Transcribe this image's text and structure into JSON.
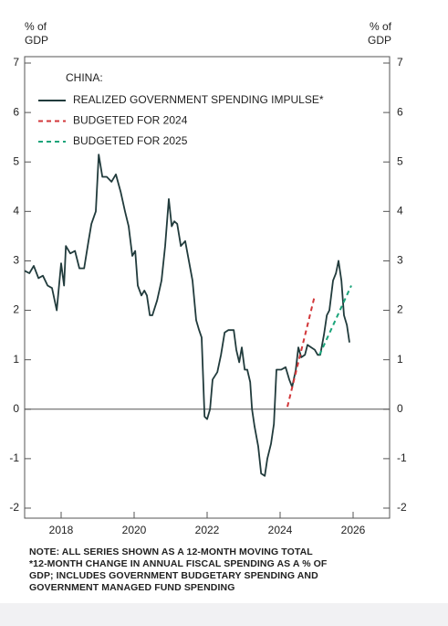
{
  "chart_data": {
    "type": "line",
    "y_label": "% of GDP",
    "legend_title": "CHINA:",
    "notes": [
      "NOTE: ALL SERIES SHOWN AS A 12-MONTH MOVING TOTAL",
      "*12-MONTH CHANGE IN ANNUAL FISCAL SPENDING AS A % OF",
      "GDP; INCLUDES GOVERNMENT BUDGETARY SPENDING AND",
      "GOVERNMENT MANAGED FUND SPENDING"
    ],
    "xlim": [
      2017,
      2027
    ],
    "xticks": [
      2018,
      2020,
      2022,
      2024,
      2026
    ],
    "ylim": [
      -2,
      7
    ],
    "yticks": [
      -2,
      -1,
      0,
      1,
      2,
      3,
      4,
      5,
      6,
      7
    ],
    "series": [
      {
        "name": "REALIZED GOVERNMENT SPENDING IMPULSE*",
        "color": "#213b3c",
        "dash": "solid",
        "x": [
          2017.0,
          2017.13,
          2017.25,
          2017.38,
          2017.5,
          2017.63,
          2017.75,
          2017.88,
          2018.0,
          2018.08,
          2018.13,
          2018.25,
          2018.38,
          2018.5,
          2018.63,
          2018.75,
          2018.83,
          2018.95,
          2019.03,
          2019.13,
          2019.25,
          2019.38,
          2019.5,
          2019.63,
          2019.75,
          2019.85,
          2019.95,
          2020.03,
          2020.1,
          2020.2,
          2020.28,
          2020.35,
          2020.43,
          2020.5,
          2020.63,
          2020.75,
          2020.85,
          2020.95,
          2021.03,
          2021.1,
          2021.18,
          2021.28,
          2021.4,
          2021.5,
          2021.6,
          2021.7,
          2021.78,
          2021.85,
          2021.93,
          2022.0,
          2022.08,
          2022.15,
          2022.28,
          2022.38,
          2022.48,
          2022.58,
          2022.73,
          2022.8,
          2022.88,
          2022.95,
          2023.03,
          2023.1,
          2023.18,
          2023.23,
          2023.3,
          2023.4,
          2023.48,
          2023.58,
          2023.65,
          2023.75,
          2023.83,
          2023.9,
          2024.03,
          2024.15,
          2024.25,
          2024.33,
          2024.43,
          2024.5,
          2024.58,
          2024.68,
          2024.75,
          2024.85,
          2024.95,
          2025.03,
          2025.1,
          2025.2,
          2025.28,
          2025.35,
          2025.45,
          2025.53,
          2025.6,
          2025.68,
          2025.75,
          2025.83,
          2025.9
        ],
        "values": [
          2.8,
          2.75,
          2.9,
          2.65,
          2.7,
          2.5,
          2.45,
          2.0,
          2.95,
          2.5,
          3.3,
          3.15,
          3.2,
          2.85,
          2.85,
          3.4,
          3.75,
          4.0,
          5.15,
          4.7,
          4.7,
          4.6,
          4.75,
          4.4,
          4.0,
          3.7,
          3.1,
          3.2,
          2.5,
          2.3,
          2.4,
          2.3,
          1.9,
          1.9,
          2.2,
          2.6,
          3.3,
          4.25,
          3.7,
          3.8,
          3.75,
          3.3,
          3.4,
          3.0,
          2.6,
          1.8,
          1.6,
          1.45,
          -0.15,
          -0.2,
          0.0,
          0.6,
          0.75,
          1.1,
          1.55,
          1.6,
          1.6,
          1.2,
          0.95,
          1.25,
          0.8,
          0.8,
          0.55,
          0.0,
          -0.35,
          -0.75,
          -1.3,
          -1.35,
          -1.0,
          -0.7,
          -0.3,
          0.8,
          0.8,
          0.85,
          0.6,
          0.45,
          0.8,
          1.25,
          1.05,
          1.1,
          1.3,
          1.25,
          1.2,
          1.1,
          1.1,
          1.5,
          1.9,
          2.0,
          2.6,
          2.75,
          3.0,
          2.6,
          1.9,
          1.7,
          1.35
        ]
      },
      {
        "name": "BUDGETED FOR 2024",
        "color": "#d2373a",
        "dash": "dashed",
        "x": [
          2024.2,
          2024.95
        ],
        "values": [
          0.05,
          2.3
        ]
      },
      {
        "name": "BUDGETED FOR 2025",
        "color": "#1ba47a",
        "dash": "dashed",
        "x": [
          2025.08,
          2025.95
        ],
        "values": [
          1.1,
          2.5
        ]
      }
    ]
  }
}
